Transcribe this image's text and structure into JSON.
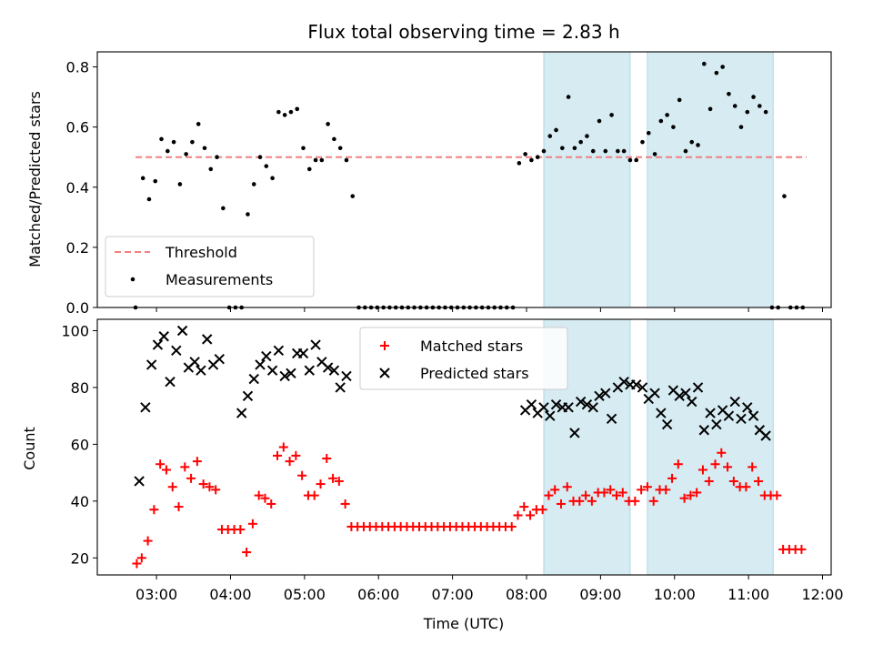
{
  "chart_data": [
    {
      "type": "scatter",
      "title": "Flux total observing time = 2.83 h",
      "xlabel": "",
      "ylabel": "Matched/Predicted stars",
      "ylim": [
        0,
        0.85
      ],
      "yticks": [
        "0.0",
        "0.2",
        "0.4",
        "0.6",
        "0.8"
      ],
      "ytick_values": [
        0,
        0.2,
        0.4,
        0.6,
        0.8
      ],
      "legend_position": "lower-left",
      "threshold": {
        "name": "Threshold",
        "value": 0.5,
        "x_range": [
          "02:43",
          "11:47"
        ],
        "color": "#f08080"
      },
      "series": [
        {
          "name": "Measurements",
          "color": "#000000",
          "x": [
            "02:43",
            "02:49",
            "02:54",
            "02:59",
            "03:04",
            "03:09",
            "03:14",
            "03:19",
            "03:24",
            "03:29",
            "03:34",
            "03:39",
            "03:44",
            "03:49",
            "03:54",
            "03:59",
            "04:04",
            "04:09",
            "04:14",
            "04:19",
            "04:24",
            "04:29",
            "04:34",
            "04:39",
            "04:44",
            "04:49",
            "04:54",
            "04:59",
            "05:04",
            "05:09",
            "05:14",
            "05:19",
            "05:24",
            "05:29",
            "05:34",
            "05:39",
            "05:44",
            "05:49",
            "05:54",
            "05:59",
            "06:04",
            "06:09",
            "06:14",
            "06:19",
            "06:24",
            "06:29",
            "06:34",
            "06:39",
            "06:44",
            "06:49",
            "06:54",
            "06:59",
            "07:04",
            "07:09",
            "07:14",
            "07:19",
            "07:24",
            "07:29",
            "07:34",
            "07:39",
            "07:44",
            "07:49",
            "07:54",
            "07:59",
            "08:04",
            "08:09",
            "08:14",
            "08:19",
            "08:24",
            "08:29",
            "08:34",
            "08:39",
            "08:44",
            "08:49",
            "08:54",
            "08:59",
            "09:04",
            "09:09",
            "09:14",
            "09:19",
            "09:24",
            "09:29",
            "09:34",
            "09:39",
            "09:44",
            "09:49",
            "09:54",
            "09:59",
            "10:04",
            "10:09",
            "10:14",
            "10:19",
            "10:24",
            "10:29",
            "10:34",
            "10:39",
            "10:44",
            "10:49",
            "10:54",
            "10:59",
            "11:04",
            "11:09",
            "11:14",
            "11:19",
            "11:24",
            "11:29",
            "11:34",
            "11:39",
            "11:44"
          ],
          "y": [
            0.0,
            0.43,
            0.36,
            0.42,
            0.56,
            0.52,
            0.55,
            0.41,
            0.51,
            0.55,
            0.61,
            0.53,
            0.46,
            0.5,
            0.33,
            0.0,
            0.0,
            0.0,
            0.31,
            0.41,
            0.5,
            0.47,
            0.43,
            0.65,
            0.64,
            0.65,
            0.66,
            0.53,
            0.46,
            0.49,
            0.49,
            0.61,
            0.56,
            0.53,
            0.49,
            0.37,
            0.0,
            0.0,
            0.0,
            0.0,
            0.0,
            0.0,
            0.0,
            0.0,
            0.0,
            0.0,
            0.0,
            0.0,
            0.0,
            0.0,
            0.0,
            0.0,
            0.0,
            0.0,
            0.0,
            0.0,
            0.0,
            0.0,
            0.0,
            0.0,
            0.0,
            0.0,
            0.48,
            0.51,
            0.49,
            0.5,
            0.52,
            0.57,
            0.59,
            0.53,
            0.7,
            0.53,
            0.55,
            0.57,
            0.52,
            0.62,
            0.52,
            0.64,
            0.52,
            0.52,
            0.49,
            0.49,
            0.55,
            0.58,
            0.51,
            0.62,
            0.64,
            0.6,
            0.69,
            0.52,
            0.55,
            0.54,
            0.81,
            0.66,
            0.78,
            0.8,
            0.71,
            0.67,
            0.6,
            0.65,
            0.7,
            0.67,
            0.65,
            0.0,
            0.0,
            0.37,
            0.0,
            0.0,
            0.0
          ]
        }
      ]
    },
    {
      "type": "scatter",
      "title": "",
      "xlabel": "Time (UTC)",
      "ylabel": "Count",
      "ylim": [
        14,
        104
      ],
      "yticks": [
        "20",
        "40",
        "60",
        "80",
        "100"
      ],
      "ytick_values": [
        20,
        40,
        60,
        80,
        100
      ],
      "xticks": [
        "03:00",
        "04:00",
        "05:00",
        "06:00",
        "07:00",
        "08:00",
        "09:00",
        "10:00",
        "11:00",
        "12:00"
      ],
      "xtick_values": [
        "03:00",
        "04:00",
        "05:00",
        "06:00",
        "07:00",
        "08:00",
        "09:00",
        "10:00",
        "11:00",
        "12:00"
      ],
      "legend_position": "top-center",
      "series": [
        {
          "name": "Matched stars",
          "marker": "plus",
          "color": "#ff0000",
          "x": [
            "02:44",
            "02:48",
            "02:53",
            "02:58",
            "03:03",
            "03:08",
            "03:13",
            "03:18",
            "03:23",
            "03:28",
            "03:33",
            "03:38",
            "03:43",
            "03:48",
            "03:53",
            "03:58",
            "04:03",
            "04:08",
            "04:13",
            "04:18",
            "04:23",
            "04:28",
            "04:33",
            "04:38",
            "04:43",
            "04:48",
            "04:53",
            "04:58",
            "05:03",
            "05:08",
            "05:13",
            "05:18",
            "05:23",
            "05:28",
            "05:33",
            "05:38",
            "05:43",
            "05:48",
            "05:53",
            "05:58",
            "06:03",
            "06:08",
            "06:13",
            "06:18",
            "06:23",
            "06:28",
            "06:33",
            "06:38",
            "06:43",
            "06:48",
            "06:53",
            "06:58",
            "07:03",
            "07:08",
            "07:13",
            "07:18",
            "07:23",
            "07:28",
            "07:33",
            "07:38",
            "07:43",
            "07:48",
            "07:53",
            "07:58",
            "08:03",
            "08:08",
            "08:13",
            "08:18",
            "08:23",
            "08:28",
            "08:33",
            "08:38",
            "08:43",
            "08:48",
            "08:53",
            "08:58",
            "09:03",
            "09:08",
            "09:13",
            "09:18",
            "09:23",
            "09:28",
            "09:33",
            "09:38",
            "09:43",
            "09:48",
            "09:53",
            "09:58",
            "10:03",
            "10:08",
            "10:13",
            "10:18",
            "10:23",
            "10:28",
            "10:33",
            "10:38",
            "10:43",
            "10:48",
            "10:53",
            "10:58",
            "11:03",
            "11:08",
            "11:13",
            "11:18",
            "11:23",
            "11:28",
            "11:33",
            "11:38",
            "11:43"
          ],
          "y": [
            18,
            20,
            26,
            37,
            53,
            51,
            45,
            38,
            52,
            48,
            54,
            46,
            45,
            44,
            30,
            30,
            30,
            30,
            22,
            32,
            42,
            41,
            39,
            56,
            59,
            54,
            56,
            49,
            42,
            42,
            46,
            55,
            48,
            47,
            39,
            31,
            31,
            31,
            31,
            31,
            31,
            31,
            31,
            31,
            31,
            31,
            31,
            31,
            31,
            31,
            31,
            31,
            31,
            31,
            31,
            31,
            31,
            31,
            31,
            31,
            31,
            31,
            35,
            38,
            35,
            37,
            37,
            42,
            44,
            39,
            45,
            40,
            40,
            42,
            40,
            43,
            43,
            44,
            42,
            43,
            40,
            40,
            44,
            45,
            40,
            44,
            44,
            48,
            53,
            41,
            42,
            43,
            51,
            47,
            53,
            57,
            52,
            47,
            45,
            45,
            52,
            47,
            42,
            42,
            42,
            23,
            23,
            23,
            23
          ]
        },
        {
          "name": "Predicted stars",
          "marker": "x",
          "color": "#000000",
          "x": [
            "02:46",
            "02:51",
            "02:56",
            "03:01",
            "03:06",
            "03:11",
            "03:16",
            "03:21",
            "03:26",
            "03:31",
            "03:36",
            "03:41",
            "03:46",
            "03:51",
            "04:09",
            "04:14",
            "04:19",
            "04:24",
            "04:29",
            "04:34",
            "04:39",
            "04:44",
            "04:49",
            "04:54",
            "04:59",
            "05:04",
            "05:09",
            "05:14",
            "05:19",
            "05:24",
            "05:29",
            "05:34",
            "07:59",
            "08:04",
            "08:09",
            "08:14",
            "08:19",
            "08:24",
            "08:29",
            "08:34",
            "08:39",
            "08:44",
            "08:49",
            "08:54",
            "08:59",
            "09:04",
            "09:09",
            "09:14",
            "09:19",
            "09:24",
            "09:29",
            "09:34",
            "09:39",
            "09:44",
            "09:49",
            "09:54",
            "09:59",
            "10:04",
            "10:09",
            "10:14",
            "10:19",
            "10:24",
            "10:29",
            "10:34",
            "10:39",
            "10:44",
            "10:49",
            "10:54",
            "10:59",
            "11:04",
            "11:09",
            "11:14",
            "11:19",
            "11:24",
            "11:29",
            "11:34",
            "11:39"
          ],
          "y": [
            47,
            73,
            88,
            95,
            98,
            82,
            93,
            100,
            87,
            89,
            86,
            97,
            88,
            90,
            71,
            77,
            83,
            88,
            91,
            86,
            93,
            84,
            85,
            92,
            92,
            86,
            95,
            89,
            87,
            86,
            80,
            84,
            72,
            74,
            71,
            73,
            70,
            74,
            73,
            73,
            64,
            75,
            74,
            73,
            77,
            78,
            69,
            80,
            82,
            81,
            81,
            80,
            76,
            78,
            71,
            67,
            79,
            77,
            78,
            75,
            80,
            65,
            71,
            67,
            72,
            70,
            75,
            69,
            73,
            70,
            65,
            63,
            null,
            null,
            null,
            null,
            null
          ]
        }
      ]
    }
  ],
  "shaded_regions": [
    [
      "08:14",
      "09:24"
    ],
    [
      "09:38",
      "11:20"
    ]
  ]
}
